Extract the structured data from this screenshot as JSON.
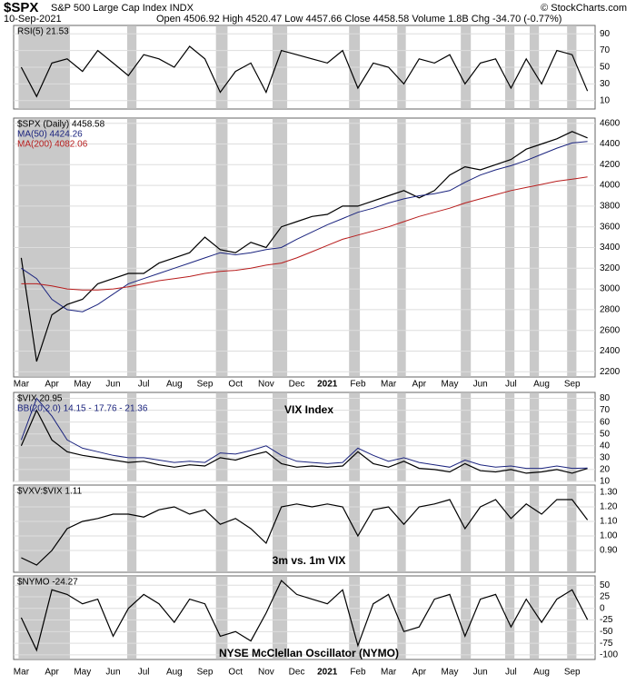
{
  "header": {
    "symbol": "$SPX",
    "name": "S&P 500 Large Cap Index INDX",
    "date": "10-Sep-2021",
    "quote": "Open 4506.92 High 4520.47 Low 4457.66 Close 4458.58 Volume 1.8B Chg -34.70 (-0.77%)",
    "credit": "© StockCharts.com"
  },
  "highlights": [
    [
      0,
      3
    ],
    [
      7.1,
      7.35
    ],
    [
      12.9,
      13.3
    ],
    [
      16.6,
      17.2
    ],
    [
      21.6,
      21.95
    ],
    [
      24.75,
      24.95
    ],
    [
      28.9,
      29.2
    ],
    [
      31.8,
      32.05
    ],
    [
      33.4,
      33.65
    ],
    [
      35.85,
      36.1
    ]
  ],
  "chart_data": [
    {
      "type": "line",
      "ylim": [
        0,
        100
      ],
      "yticks": [
        10,
        30,
        50,
        70,
        90
      ],
      "series": [
        {
          "name": "RSI(5) 21.53",
          "color": "#000000",
          "values": [
            50,
            15,
            55,
            60,
            45,
            70,
            55,
            40,
            65,
            60,
            50,
            75,
            60,
            20,
            45,
            55,
            20,
            70,
            65,
            60,
            55,
            70,
            25,
            55,
            50,
            30,
            60,
            55,
            65,
            30,
            55,
            60,
            25,
            60,
            30,
            70,
            65,
            21.53
          ]
        }
      ]
    },
    {
      "type": "line",
      "ylim": [
        2150,
        4650
      ],
      "yticks": [
        2200,
        2400,
        2600,
        2800,
        3000,
        3200,
        3400,
        3600,
        3800,
        4000,
        4200,
        4400,
        4600
      ],
      "series": [
        {
          "name": "$SPX (Daily) 4458.58",
          "color": "#000000",
          "values": [
            3300,
            2300,
            2750,
            2850,
            2900,
            3050,
            3100,
            3150,
            3150,
            3250,
            3300,
            3350,
            3500,
            3380,
            3350,
            3450,
            3400,
            3600,
            3650,
            3700,
            3720,
            3800,
            3800,
            3850,
            3900,
            3950,
            3880,
            3950,
            4100,
            4180,
            4150,
            4200,
            4250,
            4350,
            4400,
            4450,
            4520,
            4458.58
          ]
        },
        {
          "name": "MA(50) 4424.26",
          "color": "#1a237e",
          "values": [
            3200,
            3100,
            2900,
            2800,
            2780,
            2850,
            2950,
            3050,
            3100,
            3150,
            3200,
            3250,
            3300,
            3350,
            3330,
            3350,
            3380,
            3400,
            3480,
            3550,
            3620,
            3680,
            3740,
            3780,
            3830,
            3870,
            3900,
            3920,
            3950,
            4030,
            4100,
            4150,
            4190,
            4240,
            4300,
            4360,
            4410,
            4424.26
          ]
        },
        {
          "name": "MA(200) 4082.06",
          "color": "#b71c1c",
          "values": [
            3050,
            3050,
            3030,
            3000,
            2990,
            2990,
            3000,
            3020,
            3050,
            3080,
            3100,
            3120,
            3150,
            3170,
            3180,
            3200,
            3230,
            3250,
            3300,
            3360,
            3420,
            3480,
            3520,
            3560,
            3600,
            3650,
            3700,
            3740,
            3780,
            3830,
            3870,
            3910,
            3950,
            3980,
            4010,
            4040,
            4060,
            4082.06
          ]
        }
      ]
    },
    {
      "type": "line",
      "annotation": "VIX Index",
      "ylim": [
        10,
        85
      ],
      "yticks": [
        10,
        20,
        30,
        40,
        50,
        60,
        70,
        80
      ],
      "series": [
        {
          "name": "$VIX 20.95",
          "color": "#000000",
          "values": [
            40,
            70,
            45,
            35,
            32,
            30,
            28,
            26,
            27,
            24,
            22,
            24,
            23,
            30,
            28,
            32,
            35,
            25,
            22,
            23,
            22,
            23,
            35,
            25,
            22,
            27,
            21,
            20,
            18,
            25,
            19,
            18,
            20,
            17,
            18,
            20,
            17,
            20.95
          ]
        },
        {
          "name": "BB(20,2.0) 14.15 - 17.76 - 21.36",
          "color": "#1a237e",
          "values": [
            45,
            80,
            65,
            45,
            38,
            35,
            32,
            30,
            30,
            28,
            26,
            27,
            26,
            34,
            33,
            36,
            40,
            32,
            27,
            26,
            25,
            26,
            38,
            32,
            27,
            30,
            26,
            24,
            22,
            28,
            24,
            22,
            23,
            21,
            21,
            23,
            21,
            21.36
          ]
        }
      ]
    },
    {
      "type": "line",
      "annotation": "3m vs. 1m VIX",
      "ylim": [
        0.75,
        1.35
      ],
      "yticks": [
        {
          "value": 0.9,
          "label": "0.90"
        },
        {
          "value": 1,
          "label": "1.00"
        },
        {
          "value": 1.1,
          "label": "1.10"
        },
        {
          "value": 1.2,
          "label": "1.20"
        },
        {
          "value": 1.3,
          "label": "1.30"
        }
      ],
      "series": [
        {
          "name": "$VXV:$VIX 1.11",
          "color": "#000000",
          "values": [
            0.85,
            0.8,
            0.9,
            1.05,
            1.1,
            1.12,
            1.15,
            1.15,
            1.13,
            1.18,
            1.2,
            1.15,
            1.18,
            1.08,
            1.12,
            1.05,
            0.95,
            1.2,
            1.22,
            1.2,
            1.22,
            1.2,
            1.0,
            1.18,
            1.2,
            1.08,
            1.2,
            1.22,
            1.25,
            1.05,
            1.2,
            1.25,
            1.12,
            1.22,
            1.15,
            1.25,
            1.25,
            1.11
          ]
        }
      ]
    },
    {
      "type": "line",
      "annotation": "NYSE McClellan Oscillator (NYMO)",
      "ylim": [
        -110,
        70
      ],
      "yticks": [
        -100,
        -75,
        -50,
        -25,
        0,
        25,
        50
      ],
      "categories": [
        "Mar",
        null,
        "Apr",
        null,
        "May",
        null,
        "Jun",
        null,
        "Jul",
        null,
        "Aug",
        null,
        "Sep",
        null,
        "Oct",
        null,
        "Nov",
        null,
        "Dec",
        null,
        "2021",
        null,
        "Feb",
        null,
        "Mar",
        null,
        "Apr",
        null,
        "May",
        null,
        "Jun",
        null,
        "Jul",
        null,
        "Aug",
        null,
        "Sep",
        null
      ],
      "series": [
        {
          "name": "$NYMO -24.27",
          "color": "#000000",
          "values": [
            -20,
            -90,
            40,
            30,
            10,
            20,
            -60,
            0,
            30,
            10,
            -30,
            20,
            10,
            -60,
            -50,
            -70,
            -10,
            60,
            30,
            20,
            10,
            40,
            -80,
            10,
            30,
            -50,
            -40,
            20,
            30,
            -60,
            20,
            30,
            -40,
            20,
            -30,
            20,
            40,
            -24.27
          ]
        }
      ]
    }
  ]
}
